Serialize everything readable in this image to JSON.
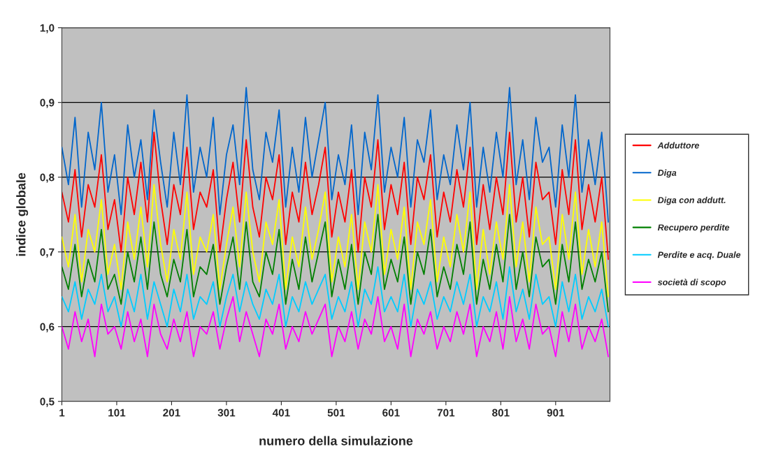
{
  "chart_data": {
    "type": "line",
    "xlabel": "numero della simulazione",
    "ylabel": "indice globale",
    "x": [
      1,
      13,
      25,
      37,
      49,
      61,
      73,
      85,
      97,
      109,
      121,
      133,
      145,
      157,
      169,
      181,
      193,
      205,
      217,
      229,
      241,
      253,
      265,
      277,
      289,
      301,
      313,
      325,
      337,
      349,
      361,
      373,
      385,
      397,
      409,
      421,
      433,
      445,
      457,
      469,
      481,
      493,
      505,
      517,
      529,
      541,
      553,
      565,
      577,
      589,
      601,
      613,
      625,
      637,
      649,
      661,
      673,
      685,
      697,
      709,
      721,
      733,
      745,
      757,
      769,
      781,
      793,
      805,
      817,
      829,
      841,
      853,
      865,
      877,
      889,
      901,
      913,
      925,
      937,
      949,
      961,
      973,
      985,
      997
    ],
    "series": [
      {
        "name": "Adduttore",
        "color": "#ff0000",
        "values": [
          0.78,
          0.74,
          0.81,
          0.72,
          0.79,
          0.76,
          0.83,
          0.73,
          0.77,
          0.7,
          0.8,
          0.75,
          0.82,
          0.74,
          0.86,
          0.77,
          0.71,
          0.79,
          0.75,
          0.84,
          0.73,
          0.78,
          0.76,
          0.81,
          0.7,
          0.77,
          0.82,
          0.74,
          0.85,
          0.76,
          0.72,
          0.8,
          0.77,
          0.83,
          0.71,
          0.78,
          0.74,
          0.82,
          0.75,
          0.79,
          0.84,
          0.72,
          0.78,
          0.74,
          0.81,
          0.7,
          0.8,
          0.76,
          0.85,
          0.73,
          0.79,
          0.75,
          0.82,
          0.71,
          0.8,
          0.77,
          0.83,
          0.72,
          0.78,
          0.74,
          0.81,
          0.76,
          0.84,
          0.71,
          0.79,
          0.73,
          0.8,
          0.75,
          0.86,
          0.74,
          0.8,
          0.72,
          0.82,
          0.77,
          0.78,
          0.71,
          0.81,
          0.75,
          0.85,
          0.73,
          0.79,
          0.74,
          0.8,
          0.69
        ]
      },
      {
        "name": "Diga",
        "color": "#0066cc",
        "values": [
          0.84,
          0.79,
          0.88,
          0.76,
          0.86,
          0.81,
          0.9,
          0.78,
          0.83,
          0.75,
          0.87,
          0.8,
          0.85,
          0.77,
          0.89,
          0.82,
          0.76,
          0.86,
          0.79,
          0.91,
          0.78,
          0.84,
          0.8,
          0.88,
          0.75,
          0.83,
          0.87,
          0.79,
          0.92,
          0.81,
          0.77,
          0.86,
          0.82,
          0.89,
          0.76,
          0.84,
          0.78,
          0.88,
          0.8,
          0.85,
          0.9,
          0.77,
          0.83,
          0.79,
          0.87,
          0.75,
          0.86,
          0.81,
          0.91,
          0.78,
          0.84,
          0.8,
          0.88,
          0.76,
          0.85,
          0.82,
          0.89,
          0.77,
          0.83,
          0.79,
          0.87,
          0.81,
          0.9,
          0.76,
          0.84,
          0.78,
          0.86,
          0.8,
          0.92,
          0.79,
          0.85,
          0.77,
          0.88,
          0.82,
          0.84,
          0.76,
          0.87,
          0.8,
          0.91,
          0.78,
          0.85,
          0.79,
          0.86,
          0.74
        ]
      },
      {
        "name": "Diga con addutt.",
        "color": "#ffff00",
        "values": [
          0.72,
          0.68,
          0.75,
          0.66,
          0.73,
          0.7,
          0.77,
          0.67,
          0.71,
          0.65,
          0.74,
          0.69,
          0.76,
          0.68,
          0.79,
          0.71,
          0.66,
          0.73,
          0.69,
          0.78,
          0.67,
          0.72,
          0.7,
          0.75,
          0.65,
          0.71,
          0.76,
          0.68,
          0.78,
          0.7,
          0.66,
          0.74,
          0.71,
          0.77,
          0.65,
          0.72,
          0.68,
          0.76,
          0.69,
          0.73,
          0.78,
          0.66,
          0.72,
          0.68,
          0.75,
          0.65,
          0.74,
          0.7,
          0.79,
          0.67,
          0.73,
          0.69,
          0.76,
          0.65,
          0.74,
          0.71,
          0.77,
          0.66,
          0.72,
          0.68,
          0.75,
          0.7,
          0.78,
          0.65,
          0.73,
          0.67,
          0.74,
          0.69,
          0.79,
          0.68,
          0.74,
          0.66,
          0.76,
          0.71,
          0.72,
          0.65,
          0.75,
          0.69,
          0.78,
          0.67,
          0.73,
          0.68,
          0.74,
          0.64
        ]
      },
      {
        "name": "Recupero perdite",
        "color": "#008000",
        "values": [
          0.68,
          0.65,
          0.71,
          0.64,
          0.69,
          0.66,
          0.73,
          0.65,
          0.67,
          0.63,
          0.7,
          0.66,
          0.72,
          0.65,
          0.74,
          0.67,
          0.64,
          0.69,
          0.66,
          0.73,
          0.64,
          0.68,
          0.67,
          0.71,
          0.63,
          0.68,
          0.72,
          0.65,
          0.74,
          0.66,
          0.64,
          0.7,
          0.67,
          0.73,
          0.63,
          0.69,
          0.65,
          0.72,
          0.66,
          0.7,
          0.74,
          0.64,
          0.69,
          0.65,
          0.71,
          0.63,
          0.7,
          0.67,
          0.75,
          0.65,
          0.69,
          0.66,
          0.72,
          0.63,
          0.7,
          0.67,
          0.73,
          0.64,
          0.68,
          0.65,
          0.71,
          0.67,
          0.74,
          0.63,
          0.69,
          0.65,
          0.71,
          0.66,
          0.75,
          0.65,
          0.7,
          0.64,
          0.72,
          0.68,
          0.69,
          0.63,
          0.71,
          0.66,
          0.74,
          0.65,
          0.69,
          0.66,
          0.7,
          0.62
        ]
      },
      {
        "name": "Perdite e acq. Duale",
        "color": "#00ccff",
        "values": [
          0.64,
          0.62,
          0.66,
          0.61,
          0.65,
          0.63,
          0.67,
          0.62,
          0.64,
          0.6,
          0.65,
          0.62,
          0.67,
          0.61,
          0.66,
          0.63,
          0.6,
          0.65,
          0.62,
          0.67,
          0.61,
          0.64,
          0.63,
          0.66,
          0.6,
          0.64,
          0.67,
          0.62,
          0.66,
          0.63,
          0.61,
          0.65,
          0.63,
          0.67,
          0.6,
          0.64,
          0.62,
          0.66,
          0.63,
          0.65,
          0.67,
          0.61,
          0.64,
          0.62,
          0.66,
          0.6,
          0.65,
          0.63,
          0.68,
          0.62,
          0.64,
          0.62,
          0.67,
          0.6,
          0.65,
          0.63,
          0.66,
          0.61,
          0.64,
          0.62,
          0.66,
          0.63,
          0.67,
          0.6,
          0.64,
          0.62,
          0.66,
          0.61,
          0.68,
          0.62,
          0.65,
          0.61,
          0.67,
          0.63,
          0.64,
          0.6,
          0.66,
          0.62,
          0.67,
          0.61,
          0.64,
          0.62,
          0.65,
          0.6
        ]
      },
      {
        "name": "società di scopo",
        "color": "#ff00ff",
        "values": [
          0.6,
          0.57,
          0.62,
          0.58,
          0.61,
          0.56,
          0.63,
          0.59,
          0.6,
          0.57,
          0.62,
          0.58,
          0.61,
          0.56,
          0.63,
          0.59,
          0.57,
          0.61,
          0.58,
          0.62,
          0.56,
          0.6,
          0.59,
          0.62,
          0.57,
          0.61,
          0.64,
          0.58,
          0.62,
          0.59,
          0.56,
          0.61,
          0.59,
          0.63,
          0.57,
          0.6,
          0.58,
          0.62,
          0.59,
          0.61,
          0.63,
          0.56,
          0.6,
          0.58,
          0.62,
          0.57,
          0.61,
          0.59,
          0.64,
          0.58,
          0.6,
          0.57,
          0.63,
          0.56,
          0.61,
          0.59,
          0.62,
          0.57,
          0.6,
          0.58,
          0.62,
          0.59,
          0.63,
          0.56,
          0.6,
          0.58,
          0.62,
          0.57,
          0.64,
          0.58,
          0.61,
          0.57,
          0.63,
          0.59,
          0.6,
          0.56,
          0.62,
          0.58,
          0.63,
          0.57,
          0.6,
          0.58,
          0.61,
          0.56
        ]
      }
    ],
    "xlim": [
      1,
      1000
    ],
    "xticks": [
      1,
      101,
      201,
      301,
      401,
      501,
      601,
      701,
      801,
      901
    ],
    "ylim": [
      0.5,
      1.0
    ],
    "yticks": [
      {
        "value": 0.5,
        "label": "0,5"
      },
      {
        "value": 0.6,
        "label": "0,6"
      },
      {
        "value": 0.7,
        "label": "0,7"
      },
      {
        "value": 0.8,
        "label": "0,8"
      },
      {
        "value": 0.9,
        "label": "0,9"
      },
      {
        "value": 1.0,
        "label": "1,0"
      }
    ],
    "grid": "y",
    "legend": "right",
    "line_style": "solid",
    "marker": "none"
  }
}
